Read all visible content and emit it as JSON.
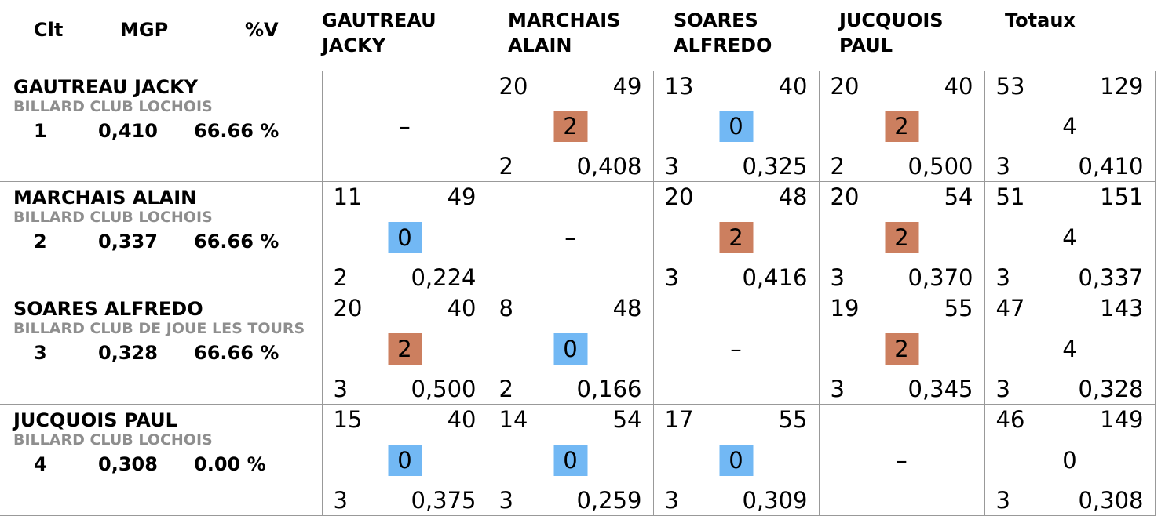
{
  "headers": {
    "clt": "Clt",
    "mgp": "MGP",
    "pctv": "%V",
    "opponents": [
      {
        "line1": "GAUTREAU",
        "line2": "JACKY"
      },
      {
        "line1": "MARCHAIS",
        "line2": "ALAIN"
      },
      {
        "line1": "SOARES",
        "line2": "ALFREDO"
      },
      {
        "line1": "JUCQUOIS",
        "line2": "PAUL"
      }
    ],
    "totals": "Totaux"
  },
  "rows": [
    {
      "name": "GAUTREAU JACKY",
      "club": "BILLARD CLUB LOCHOIS",
      "rank": "1",
      "mgp": "0,410",
      "pctv": "66.66 %",
      "cells": [
        null,
        {
          "tl": "20",
          "tr": "49",
          "pts": "2",
          "bl": "2",
          "br": "0,408"
        },
        {
          "tl": "13",
          "tr": "40",
          "pts": "0",
          "bl": "3",
          "br": "0,325"
        },
        {
          "tl": "20",
          "tr": "40",
          "pts": "2",
          "bl": "2",
          "br": "0,500"
        }
      ],
      "totals": {
        "tl": "53",
        "tr": "129",
        "pts": "4",
        "bl": "3",
        "br": "0,410"
      }
    },
    {
      "name": "MARCHAIS ALAIN",
      "club": "BILLARD CLUB LOCHOIS",
      "rank": "2",
      "mgp": "0,337",
      "pctv": "66.66 %",
      "cells": [
        {
          "tl": "11",
          "tr": "49",
          "pts": "0",
          "bl": "2",
          "br": "0,224"
        },
        null,
        {
          "tl": "20",
          "tr": "48",
          "pts": "2",
          "bl": "3",
          "br": "0,416"
        },
        {
          "tl": "20",
          "tr": "54",
          "pts": "2",
          "bl": "3",
          "br": "0,370"
        }
      ],
      "totals": {
        "tl": "51",
        "tr": "151",
        "pts": "4",
        "bl": "3",
        "br": "0,337"
      }
    },
    {
      "name": "SOARES ALFREDO",
      "club": "BILLARD CLUB DE JOUE LES TOURS",
      "rank": "3",
      "mgp": "0,328",
      "pctv": "66.66 %",
      "cells": [
        {
          "tl": "20",
          "tr": "40",
          "pts": "2",
          "bl": "3",
          "br": "0,500"
        },
        {
          "tl": "8",
          "tr": "48",
          "pts": "0",
          "bl": "2",
          "br": "0,166"
        },
        null,
        {
          "tl": "19",
          "tr": "55",
          "pts": "2",
          "bl": "3",
          "br": "0,345"
        }
      ],
      "totals": {
        "tl": "47",
        "tr": "143",
        "pts": "4",
        "bl": "3",
        "br": "0,328"
      }
    },
    {
      "name": "JUCQUOIS PAUL",
      "club": "BILLARD CLUB LOCHOIS",
      "rank": "4",
      "mgp": "0,308",
      "pctv": "0.00 %",
      "cells": [
        {
          "tl": "15",
          "tr": "40",
          "pts": "0",
          "bl": "3",
          "br": "0,375"
        },
        {
          "tl": "14",
          "tr": "54",
          "pts": "0",
          "bl": "3",
          "br": "0,259"
        },
        {
          "tl": "17",
          "tr": "55",
          "pts": "0",
          "bl": "3",
          "br": "0,309"
        },
        null
      ],
      "totals": {
        "tl": "46",
        "tr": "149",
        "pts": "0",
        "bl": "3",
        "br": "0,308"
      }
    }
  ],
  "dash": "–",
  "colors": {
    "win": "#cc7f5f",
    "loss": "#72b8f4",
    "club": "#8e8e8e",
    "grid": "#999999"
  }
}
